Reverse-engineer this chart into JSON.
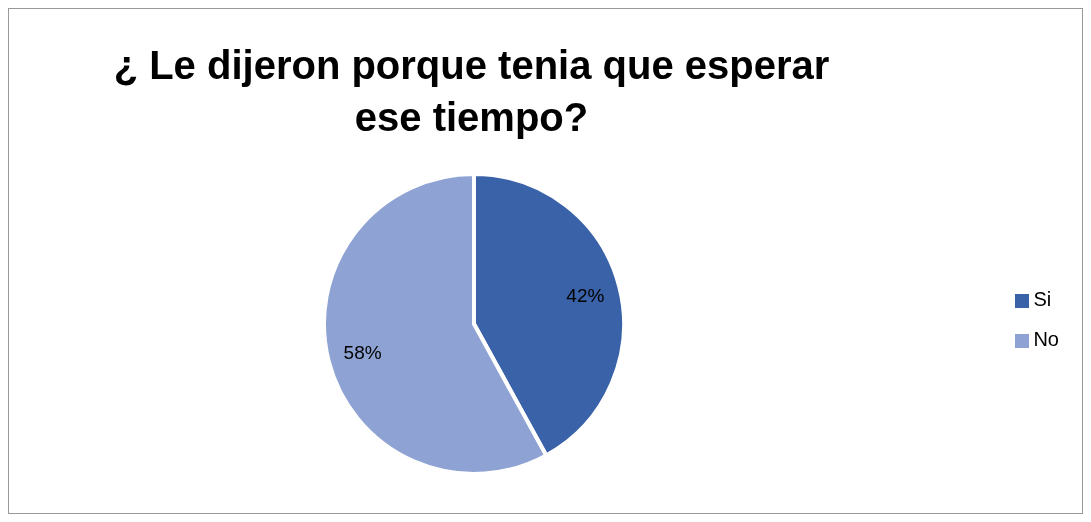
{
  "chart_data": {
    "type": "pie",
    "title": "¿ Le dijeron porque tenia que esperar ese tiempo?",
    "categories": [
      "Si",
      "No"
    ],
    "values": [
      42,
      58
    ],
    "colors": [
      "#3a62a8",
      "#8ea3d3"
    ],
    "value_labels": [
      "42%",
      "58%"
    ],
    "legend": "right"
  }
}
